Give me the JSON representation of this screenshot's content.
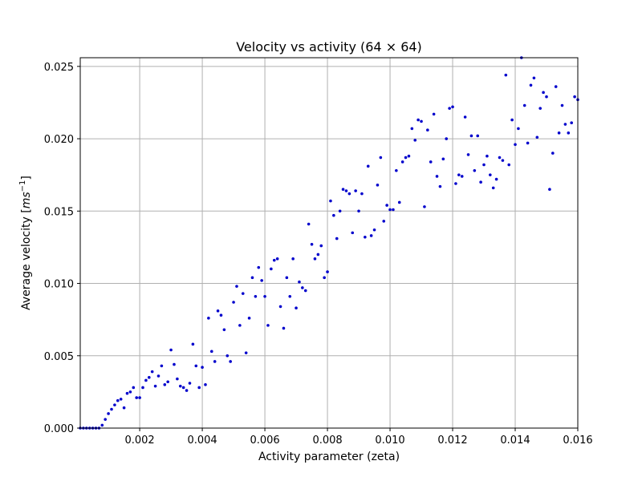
{
  "chart_data": {
    "type": "scatter",
    "title": "Velocity vs activity (64 × 64)",
    "xlabel": "Activity parameter (zeta)",
    "ylabel_main": "Average velocity [",
    "ylabel_unit": "ms",
    "ylabel_exp": "−1",
    "ylabel_close": "]",
    "xlim": [
      0.0001,
      0.016
    ],
    "ylim": [
      0.0,
      0.0256
    ],
    "xticks": [
      0.002,
      0.004,
      0.006,
      0.008,
      0.01,
      0.012,
      0.014,
      0.016
    ],
    "xtick_labels": [
      "0.002",
      "0.004",
      "0.006",
      "0.008",
      "0.010",
      "0.012",
      "0.014",
      "0.016"
    ],
    "yticks": [
      0.0,
      0.005,
      0.01,
      0.015,
      0.02,
      0.025
    ],
    "ytick_labels": [
      "0.000",
      "0.005",
      "0.010",
      "0.015",
      "0.020",
      "0.025"
    ],
    "grid": true,
    "marker_color": "#0000cc",
    "series": [
      {
        "x": [
          0.0001,
          0.0002,
          0.0003,
          0.0004,
          0.0005,
          0.0006,
          0.0007,
          0.0008,
          0.0009,
          0.001,
          0.0011,
          0.0012,
          0.0013,
          0.0014,
          0.0015,
          0.0016,
          0.0017,
          0.0018,
          0.0019,
          0.002,
          0.0021,
          0.0022,
          0.0023,
          0.0024,
          0.0025,
          0.0026,
          0.0027,
          0.0028,
          0.0029,
          0.003,
          0.0031,
          0.0032,
          0.0033,
          0.0034,
          0.0035,
          0.0036,
          0.0037,
          0.0038,
          0.0039,
          0.004,
          0.0041,
          0.0042,
          0.0043,
          0.0044,
          0.0045,
          0.0046,
          0.0047,
          0.0048,
          0.0049,
          0.005,
          0.0051,
          0.0052,
          0.0053,
          0.0054,
          0.0055,
          0.0056,
          0.0057,
          0.0058,
          0.0059,
          0.006,
          0.0061,
          0.0062,
          0.0063,
          0.0064,
          0.0065,
          0.0066,
          0.0067,
          0.0068,
          0.0069,
          0.007,
          0.0071,
          0.0072,
          0.0073,
          0.0074,
          0.0075,
          0.0076,
          0.0077,
          0.0078,
          0.0079,
          0.008,
          0.0081,
          0.0082,
          0.0083,
          0.0084,
          0.0085,
          0.0086,
          0.0087,
          0.0088,
          0.0089,
          0.009,
          0.0091,
          0.0092,
          0.0093,
          0.0094,
          0.0095,
          0.0096,
          0.0097,
          0.0098,
          0.0099,
          0.01,
          0.0101,
          0.0102,
          0.0103,
          0.0104,
          0.0105,
          0.0106,
          0.0107,
          0.0108,
          0.0109,
          0.011,
          0.0111,
          0.0112,
          0.0113,
          0.0114,
          0.0115,
          0.0116,
          0.0117,
          0.0118,
          0.0119,
          0.012,
          0.0121,
          0.0122,
          0.0123,
          0.0124,
          0.0125,
          0.0126,
          0.0127,
          0.0128,
          0.0129,
          0.013,
          0.0131,
          0.0132,
          0.0133,
          0.0134,
          0.0135,
          0.0136,
          0.0137,
          0.0138,
          0.0139,
          0.014,
          0.0141,
          0.0142,
          0.0143,
          0.0144,
          0.0145,
          0.0146,
          0.0147,
          0.0148,
          0.0149,
          0.015,
          0.0151,
          0.0152,
          0.0153,
          0.0154,
          0.0155,
          0.0156,
          0.0157,
          0.0158,
          0.0159,
          0.016
        ],
        "y": [
          0.0,
          0.0,
          0.0,
          0.0,
          0.0,
          0.0,
          0.0,
          0.0002,
          0.0006,
          0.001,
          0.0013,
          0.0016,
          0.0019,
          0.002,
          0.0014,
          0.0024,
          0.0025,
          0.0028,
          0.0021,
          0.0021,
          0.0028,
          0.0033,
          0.0035,
          0.0039,
          0.0029,
          0.0036,
          0.0043,
          0.003,
          0.0032,
          0.0054,
          0.0044,
          0.0034,
          0.0029,
          0.0028,
          0.0026,
          0.0031,
          0.0058,
          0.0043,
          0.0028,
          0.0042,
          0.003,
          0.0076,
          0.0053,
          0.0046,
          0.0081,
          0.0078,
          0.0068,
          0.005,
          0.0046,
          0.0087,
          0.0098,
          0.0071,
          0.0093,
          0.0052,
          0.0076,
          0.0104,
          0.0091,
          0.0111,
          0.0102,
          0.0091,
          0.0071,
          0.011,
          0.0116,
          0.0117,
          0.0084,
          0.0069,
          0.0104,
          0.0091,
          0.0117,
          0.0083,
          0.0101,
          0.0097,
          0.0095,
          0.0141,
          0.0127,
          0.0117,
          0.012,
          0.0126,
          0.0104,
          0.0108,
          0.0157,
          0.0147,
          0.0131,
          0.015,
          0.0165,
          0.0164,
          0.0162,
          0.0135,
          0.0164,
          0.015,
          0.0162,
          0.0132,
          0.0181,
          0.0133,
          0.0137,
          0.0168,
          0.0187,
          0.0143,
          0.0154,
          0.0151,
          0.0151,
          0.0178,
          0.0156,
          0.0184,
          0.0187,
          0.0188,
          0.0207,
          0.0199,
          0.0213,
          0.0212,
          0.0153,
          0.0206,
          0.0184,
          0.0217,
          0.0174,
          0.0167,
          0.0186,
          0.02,
          0.0221,
          0.0222,
          0.0169,
          0.0175,
          0.0174,
          0.0215,
          0.0189,
          0.0202,
          0.0178,
          0.0202,
          0.017,
          0.0182,
          0.0188,
          0.0175,
          0.0166,
          0.0172,
          0.0187,
          0.0185,
          0.0244,
          0.0182,
          0.0213,
          0.0196,
          0.0207,
          0.0256,
          0.0223,
          0.0197,
          0.0237,
          0.0242,
          0.0201,
          0.0221,
          0.0232,
          0.0229,
          0.0165,
          0.019,
          0.0236,
          0.0204,
          0.0223,
          0.021,
          0.0204,
          0.0211,
          0.0229,
          0.0227
        ]
      }
    ]
  }
}
